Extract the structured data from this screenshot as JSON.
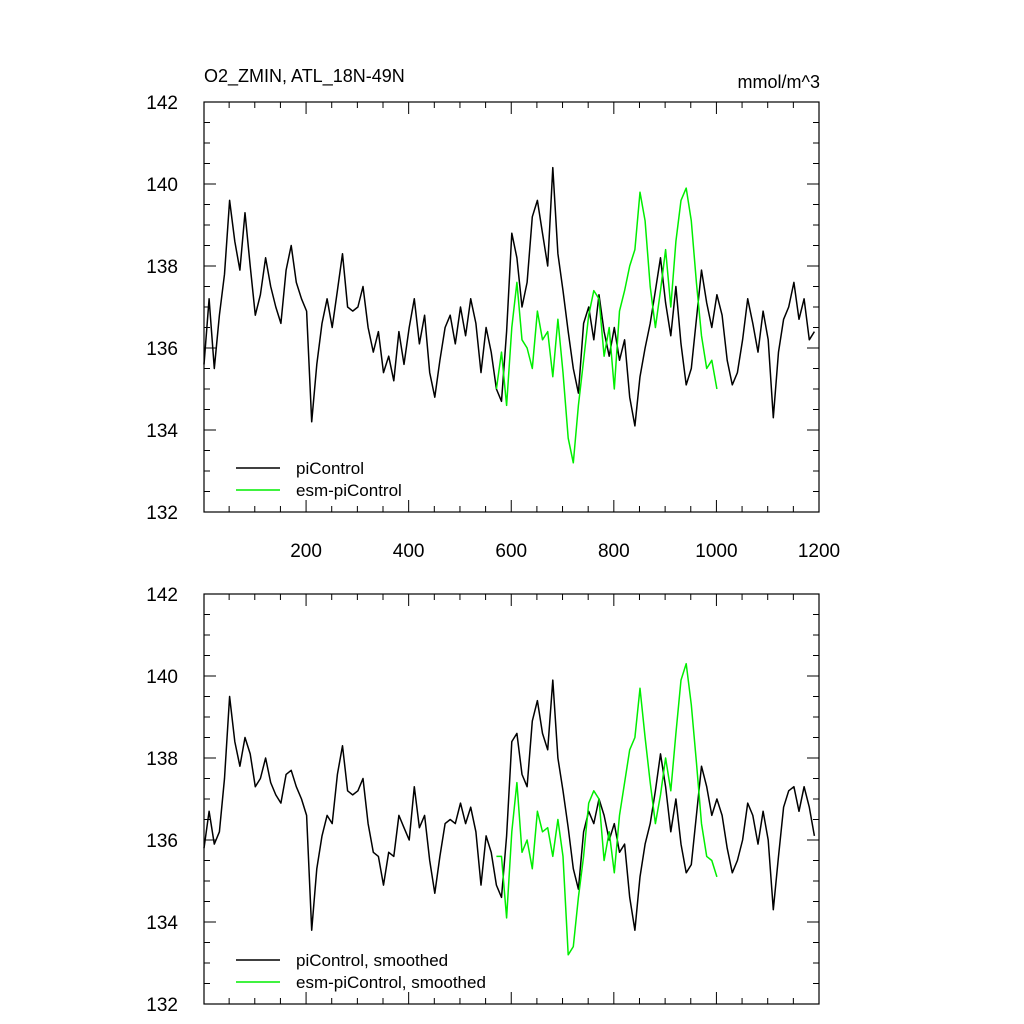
{
  "colors": {
    "piControl": "#000000",
    "esmPiControl": "#00ee00"
  },
  "chart_data": [
    {
      "type": "line",
      "title_left": "O2_ZMIN, ATL_18N-49N",
      "title_right": "mmol/m^3",
      "xlim": [
        1,
        1200
      ],
      "ylim": [
        132,
        142
      ],
      "x_ticks": [
        200,
        400,
        600,
        800,
        1000,
        1200
      ],
      "y_ticks": [
        132,
        134,
        136,
        138,
        140,
        142
      ],
      "grid": false,
      "legend_position": "bottom-left",
      "series": [
        {
          "name": "piControl",
          "x_start": 1,
          "x_step": 10,
          "values": [
            135.6,
            137.2,
            135.5,
            136.8,
            137.8,
            139.6,
            138.6,
            137.9,
            139.3,
            138.0,
            136.8,
            137.3,
            138.2,
            137.5,
            137.0,
            136.6,
            137.9,
            138.5,
            137.6,
            137.2,
            136.9,
            134.2,
            135.6,
            136.6,
            137.2,
            136.5,
            137.4,
            138.3,
            137.0,
            136.9,
            137.0,
            137.5,
            136.5,
            135.9,
            136.4,
            135.4,
            135.8,
            135.2,
            136.4,
            135.6,
            136.5,
            137.2,
            136.1,
            136.8,
            135.4,
            134.8,
            135.7,
            136.5,
            136.8,
            136.1,
            137.0,
            136.3,
            137.2,
            136.6,
            135.4,
            136.5,
            135.9,
            135.0,
            134.7,
            136.4,
            138.8,
            138.2,
            137.0,
            137.6,
            139.2,
            139.6,
            138.8,
            138.0,
            140.4,
            138.3,
            137.4,
            136.4,
            135.5,
            134.9,
            136.6,
            137.0,
            136.2,
            137.3,
            136.4,
            135.8,
            136.5,
            135.7,
            136.2,
            134.8,
            134.1,
            135.3,
            136.0,
            136.6,
            137.4,
            138.2,
            137.1,
            136.3,
            137.5,
            136.1,
            135.1,
            135.5,
            136.7,
            137.9,
            137.1,
            136.5,
            137.3,
            136.8,
            135.7,
            135.1,
            135.4,
            136.2,
            137.2,
            136.6,
            135.9,
            136.9,
            136.2,
            134.3,
            135.9,
            136.7,
            137.0,
            137.6,
            136.7,
            137.2,
            136.2,
            136.4
          ]
        },
        {
          "name": "esm-piControl",
          "x_start": 571,
          "x_step": 10,
          "values": [
            135.0,
            135.9,
            134.6,
            136.5,
            137.6,
            136.2,
            136.0,
            135.5,
            136.9,
            136.2,
            136.4,
            135.3,
            136.7,
            135.4,
            133.8,
            133.2,
            134.6,
            135.7,
            136.8,
            137.4,
            137.2,
            135.8,
            136.5,
            135.0,
            136.9,
            137.4,
            138.0,
            138.4,
            139.8,
            139.1,
            137.5,
            136.5,
            137.4,
            138.4,
            137.0,
            138.6,
            139.6,
            139.9,
            139.1,
            137.6,
            136.3,
            135.5,
            135.7,
            135.0
          ]
        }
      ]
    },
    {
      "type": "line",
      "xlim": [
        1,
        1200
      ],
      "ylim": [
        132,
        142
      ],
      "y_ticks": [
        132,
        134,
        136,
        138,
        140,
        142
      ],
      "grid": false,
      "legend_position": "bottom-left",
      "series": [
        {
          "name": "piControl, smoothed",
          "x_start": 1,
          "x_step": 10,
          "values": [
            135.8,
            136.7,
            135.9,
            136.2,
            137.5,
            139.5,
            138.4,
            137.8,
            138.5,
            138.1,
            137.3,
            137.5,
            138.0,
            137.4,
            137.1,
            136.9,
            137.6,
            137.7,
            137.3,
            137.0,
            136.6,
            133.8,
            135.3,
            136.1,
            136.6,
            136.4,
            137.6,
            138.3,
            137.2,
            137.1,
            137.2,
            137.5,
            136.4,
            135.7,
            135.6,
            134.9,
            135.7,
            135.6,
            136.6,
            136.3,
            136.0,
            137.3,
            136.3,
            136.6,
            135.5,
            134.7,
            135.6,
            136.4,
            136.5,
            136.4,
            136.9,
            136.4,
            136.8,
            136.2,
            134.9,
            136.1,
            135.7,
            134.9,
            134.6,
            136.1,
            138.4,
            138.6,
            137.6,
            137.3,
            138.9,
            139.4,
            138.6,
            138.2,
            139.9,
            138.0,
            137.2,
            136.3,
            135.3,
            134.8,
            136.2,
            136.7,
            136.4,
            137.0,
            136.6,
            136.0,
            136.4,
            135.7,
            135.9,
            134.6,
            133.8,
            135.1,
            135.9,
            136.4,
            137.2,
            138.1,
            137.3,
            136.2,
            137.0,
            135.9,
            135.2,
            135.4,
            136.6,
            137.8,
            137.3,
            136.6,
            137.0,
            136.6,
            135.8,
            135.2,
            135.5,
            136.0,
            136.9,
            136.6,
            135.9,
            136.7,
            136.0,
            134.3,
            135.6,
            136.8,
            137.2,
            137.3,
            136.7,
            137.3,
            136.8,
            136.1
          ]
        },
        {
          "name": "esm-piControl, smoothed",
          "x_start": 571,
          "x_step": 10,
          "values": [
            135.6,
            135.6,
            134.1,
            136.2,
            137.4,
            135.7,
            136.0,
            135.3,
            136.7,
            136.2,
            136.3,
            135.6,
            136.5,
            135.6,
            133.2,
            133.4,
            134.6,
            135.6,
            136.9,
            137.2,
            137.0,
            135.5,
            136.2,
            135.2,
            136.6,
            137.4,
            138.2,
            138.5,
            139.7,
            138.5,
            137.4,
            136.4,
            137.1,
            138.0,
            137.2,
            138.6,
            139.9,
            140.3,
            139.3,
            137.9,
            136.4,
            135.6,
            135.5,
            135.1
          ]
        }
      ]
    }
  ]
}
